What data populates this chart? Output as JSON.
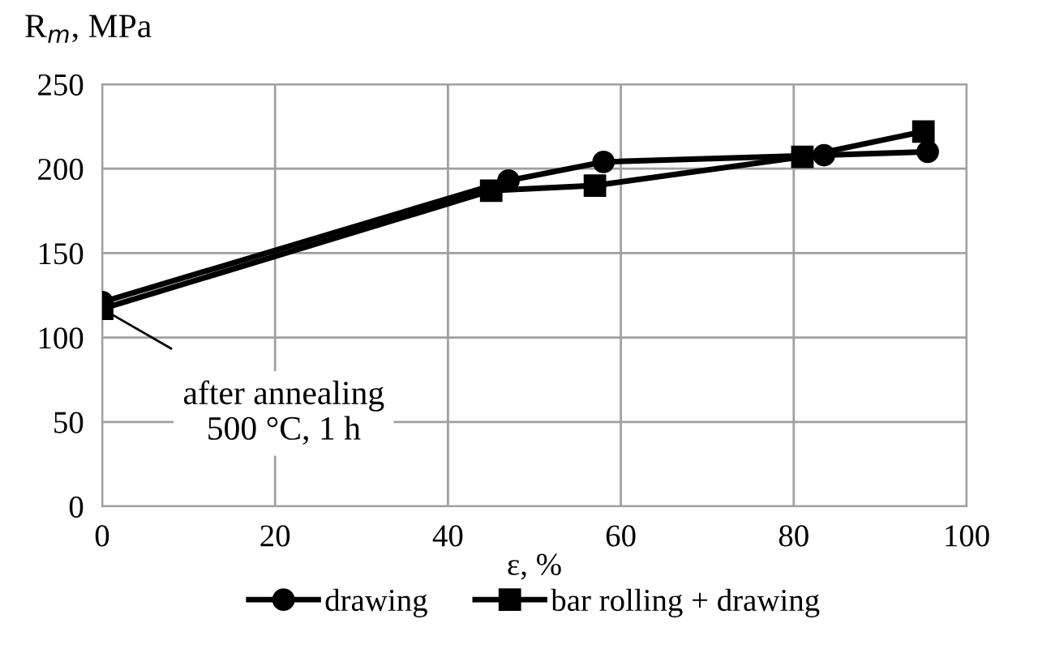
{
  "chart_data": {
    "type": "line",
    "xlabel": "ε, %",
    "ylabel": "R$_{m}$, MPa",
    "series": [
      {
        "name": "drawing",
        "color": "#000000",
        "marker": "circle",
        "x": [
          0,
          47,
          58,
          83.5,
          95.5
        ],
        "values": [
          121,
          193,
          204,
          208,
          210
        ]
      },
      {
        "name": "bar rolling + drawing",
        "color": "#000000",
        "marker": "square",
        "x": [
          0,
          45,
          57,
          81,
          95
        ],
        "values": [
          117,
          187,
          190,
          207,
          222
        ]
      }
    ],
    "xlim": [
      0,
      100
    ],
    "xticks": [
      0,
      20,
      40,
      60,
      80,
      100
    ],
    "ylim": [
      0,
      250
    ],
    "yticks": [
      0,
      50,
      100,
      150,
      200,
      250
    ],
    "grid": true,
    "legend": "bottom",
    "line_style": "solid",
    "annotations": [
      {
        "text": "after annealing\n500 °C, 1 h",
        "x": 0,
        "y": 117
      }
    ]
  }
}
